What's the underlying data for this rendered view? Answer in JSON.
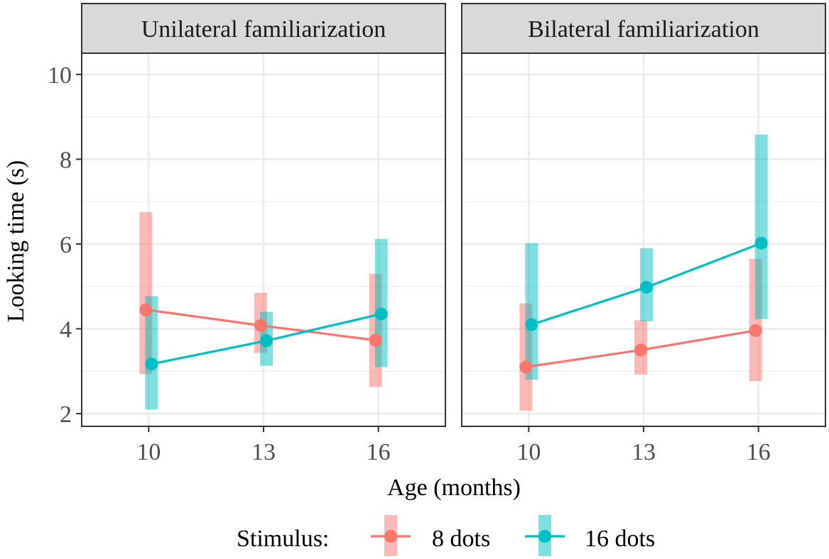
{
  "chart_data": {
    "type": "line",
    "ylabel": "Looking time (s)",
    "xlabel": "Age (months)",
    "x": [
      10,
      13,
      16
    ],
    "x_tick_labels": [
      "10",
      "13",
      "16"
    ],
    "xlim": [
      8.25,
      17.75
    ],
    "ylim": [
      1.7,
      10.5
    ],
    "y_ticks": [
      2,
      4,
      6,
      8,
      10
    ],
    "y_tick_labels": [
      "2",
      "4",
      "6",
      "8",
      "10"
    ],
    "grid": true,
    "legend": {
      "title": "Stimulus:",
      "position": "bottom",
      "entries": [
        "8 dots",
        "16 dots"
      ]
    },
    "series_colors": {
      "8 dots": "#F8766D",
      "16 dots": "#00BFC4"
    },
    "panels": [
      {
        "title": "Unilateral familiarization",
        "series": [
          {
            "name": "8 dots",
            "values": [
              4.45,
              4.08,
              3.73
            ],
            "lower": [
              2.93,
              3.43,
              2.63
            ],
            "upper": [
              6.75,
              4.85,
              5.3
            ]
          },
          {
            "name": "16 dots",
            "values": [
              3.17,
              3.72,
              4.35
            ],
            "lower": [
              2.1,
              3.13,
              3.1
            ],
            "upper": [
              4.77,
              4.4,
              6.12
            ]
          }
        ]
      },
      {
        "title": "Bilateral familiarization",
        "series": [
          {
            "name": "8 dots",
            "values": [
              3.1,
              3.5,
              3.96
            ],
            "lower": [
              2.07,
              2.92,
              2.77
            ],
            "upper": [
              4.6,
              4.2,
              5.65
            ]
          },
          {
            "name": "16 dots",
            "values": [
              4.1,
              4.98,
              6.02
            ],
            "lower": [
              2.8,
              4.18,
              4.23
            ],
            "upper": [
              6.02,
              5.9,
              8.58
            ]
          }
        ]
      }
    ]
  }
}
